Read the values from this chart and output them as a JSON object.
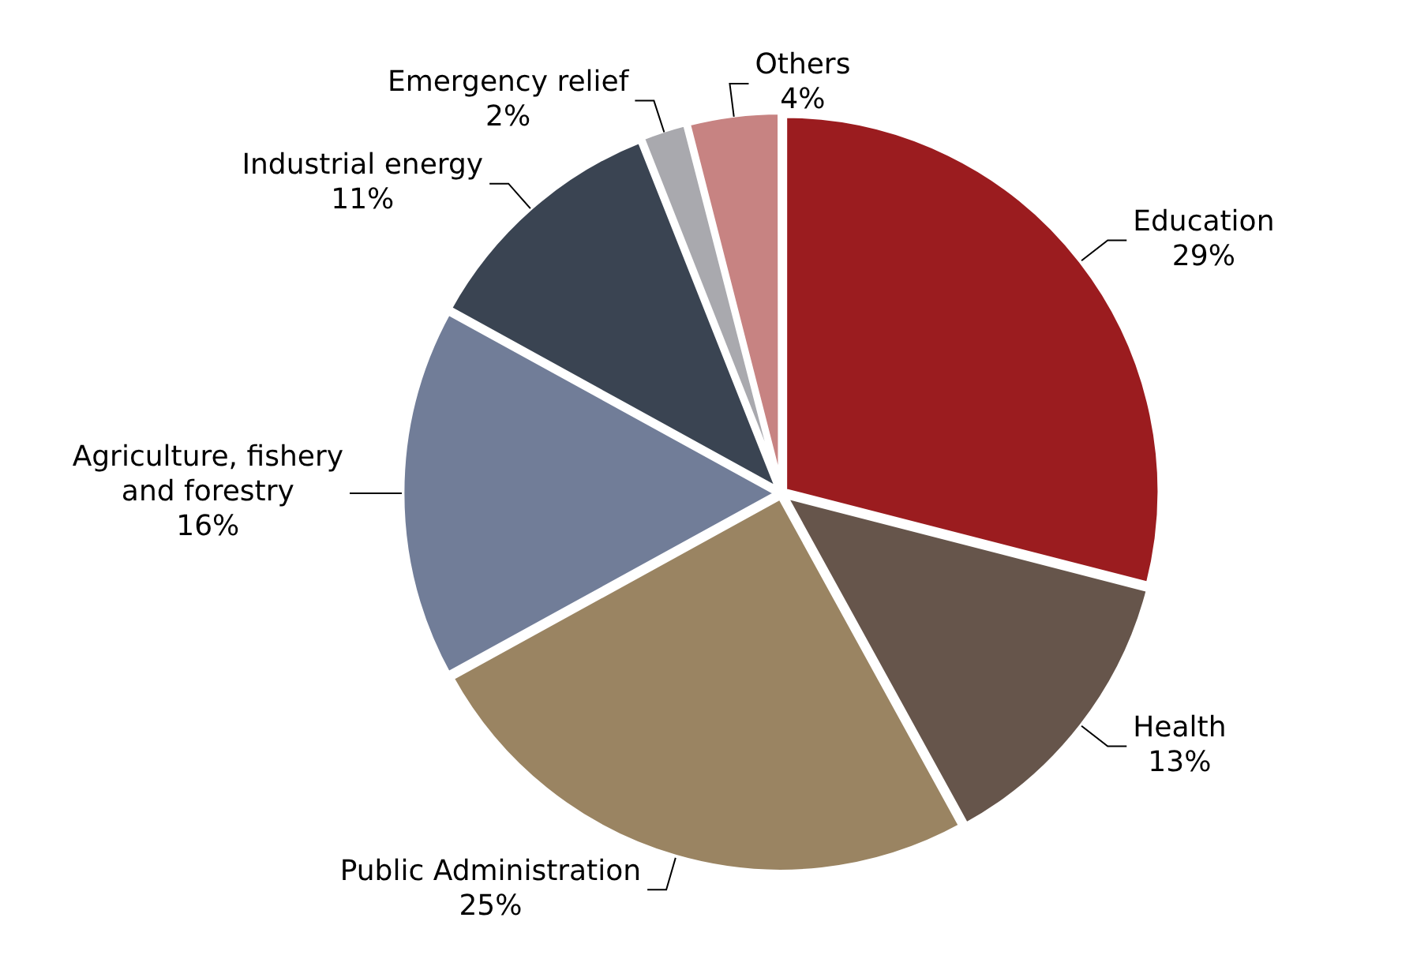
{
  "chart_data": {
    "type": "pie",
    "categories": [
      "Education",
      "Health",
      "Public Administration",
      "Agriculture, fishery and forestry",
      "Industrial energy",
      "Emergency relief",
      "Others"
    ],
    "values": [
      29,
      13,
      25,
      16,
      11,
      2,
      4
    ],
    "value_labels": [
      "29%",
      "13%",
      "25%",
      "16%",
      "11%",
      "2%",
      "4%"
    ],
    "colors": [
      "#9b1c1f",
      "#66554b",
      "#9a8462",
      "#717d98",
      "#3a4452",
      "#a9a9ae",
      "#c78382"
    ],
    "legend": false
  }
}
